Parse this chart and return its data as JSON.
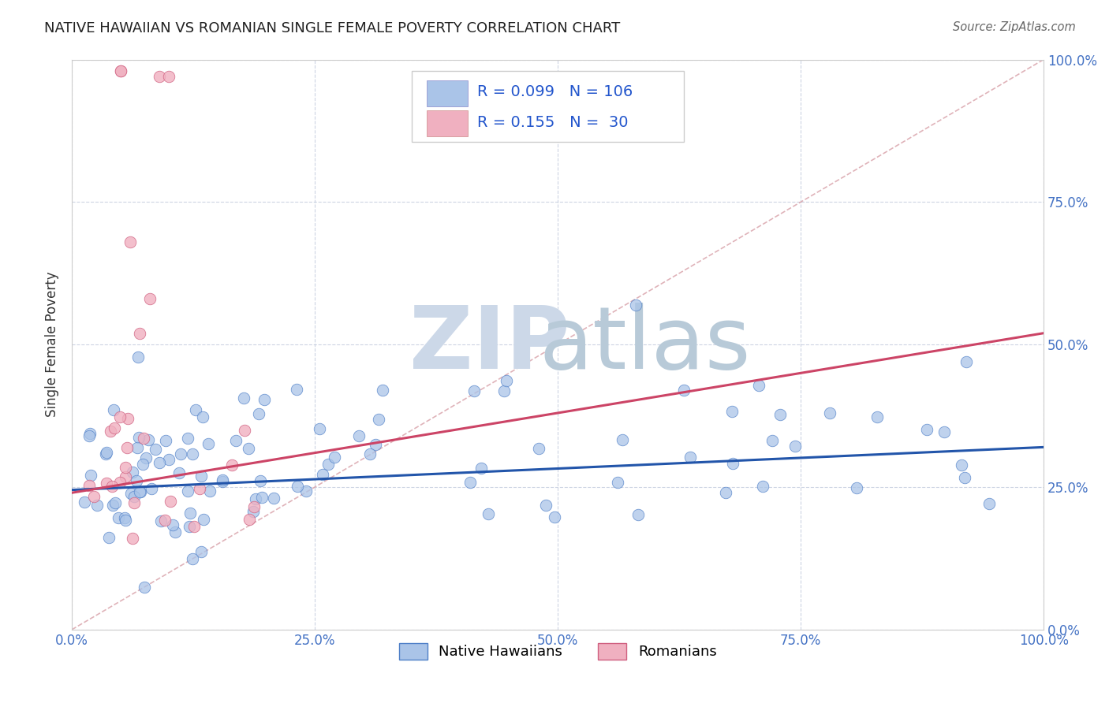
{
  "title": "NATIVE HAWAIIAN VS ROMANIAN SINGLE FEMALE POVERTY CORRELATION CHART",
  "source": "Source: ZipAtlas.com",
  "ylabel": "Single Female Poverty",
  "xlim": [
    0,
    1
  ],
  "ylim": [
    0,
    1
  ],
  "xticks": [
    0.0,
    0.25,
    0.5,
    0.75,
    1.0
  ],
  "yticks": [
    0.0,
    0.25,
    0.5,
    0.75,
    1.0
  ],
  "xticklabels": [
    "0.0%",
    "25.0%",
    "50.0%",
    "75.0%",
    "100.0%"
  ],
  "yticklabels": [
    "0.0%",
    "25.0%",
    "50.0%",
    "75.0%",
    "100.0%"
  ],
  "color_hawaiian_fill": "#aac4e8",
  "color_hawaiian_edge": "#5080c8",
  "color_romanian_fill": "#f0b0c0",
  "color_romanian_edge": "#d06080",
  "color_trend_hawaiian": "#2255aa",
  "color_trend_romanian": "#cc4466",
  "color_diag": "#d8a0a8",
  "color_grid": "#c8d0e0",
  "color_tick": "#4472c4",
  "watermark_zip_color": "#ccd8e8",
  "watermark_atlas_color": "#b8cad8",
  "legend_text_color": "#2255cc",
  "legend_r1": "R = 0.099",
  "legend_n1": "N = 106",
  "legend_r2": "R = 0.155",
  "legend_n2": "N =  30",
  "hawaiian_trend_x": [
    0.0,
    1.0
  ],
  "hawaiian_trend_y": [
    0.245,
    0.32
  ],
  "romanian_trend_x": [
    0.0,
    1.0
  ],
  "romanian_trend_y": [
    0.24,
    0.52
  ]
}
